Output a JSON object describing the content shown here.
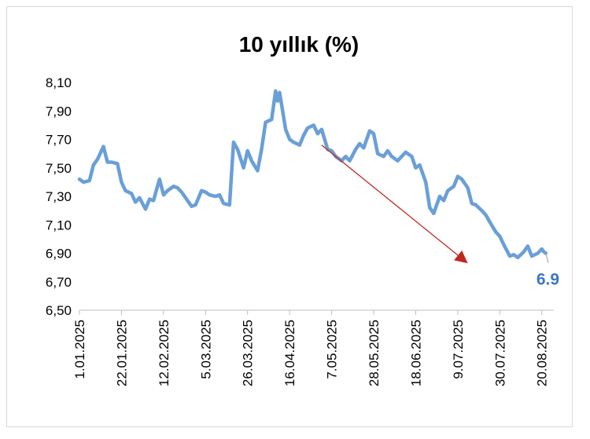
{
  "chart_data": {
    "type": "line",
    "title": "10 yıllık (%)",
    "xlabel": "",
    "ylabel": "",
    "ylim": [
      6.5,
      8.1
    ],
    "yticks": [
      6.5,
      6.7,
      6.9,
      7.1,
      7.3,
      7.5,
      7.7,
      7.9,
      8.1
    ],
    "ytick_labels": [
      "6,50",
      "6,70",
      "6,90",
      "7,10",
      "7,30",
      "7,50",
      "7,70",
      "7,90",
      "8,10"
    ],
    "xtick_labels": [
      "1.01.2025",
      "22.01.2025",
      "12.02.2025",
      "5.03.2025",
      "26.03.2025",
      "16.04.2025",
      "7.05.2025",
      "28.05.2025",
      "18.06.2025",
      "9.07.2025",
      "30.07.2025",
      "20.08.2025"
    ],
    "grid": false,
    "legend": "none",
    "series": [
      {
        "color": "#6a9fd8",
        "x": [
          "2025-01-01",
          "2025-01-03",
          "2025-01-06",
          "2025-01-08",
          "2025-01-10",
          "2025-01-13",
          "2025-01-15",
          "2025-01-17",
          "2025-01-20",
          "2025-01-22",
          "2025-01-24",
          "2025-01-27",
          "2025-01-29",
          "2025-01-31",
          "2025-02-03",
          "2025-02-05",
          "2025-02-07",
          "2025-02-10",
          "2025-02-12",
          "2025-02-14",
          "2025-02-17",
          "2025-02-19",
          "2025-02-21",
          "2025-02-24",
          "2025-02-26",
          "2025-02-28",
          "2025-03-03",
          "2025-03-05",
          "2025-03-07",
          "2025-03-10",
          "2025-03-12",
          "2025-03-14",
          "2025-03-17",
          "2025-03-19",
          "2025-03-21",
          "2025-03-24",
          "2025-03-26",
          "2025-03-28",
          "2025-03-31",
          "2025-04-02",
          "2025-04-04",
          "2025-04-07",
          "2025-04-09",
          "2025-04-10",
          "2025-04-11",
          "2025-04-14",
          "2025-04-16",
          "2025-04-18",
          "2025-04-21",
          "2025-04-23",
          "2025-04-25",
          "2025-04-28",
          "2025-04-30",
          "2025-05-02",
          "2025-05-05",
          "2025-05-07",
          "2025-05-09",
          "2025-05-12",
          "2025-05-14",
          "2025-05-16",
          "2025-05-19",
          "2025-05-21",
          "2025-05-23",
          "2025-05-26",
          "2025-05-28",
          "2025-05-30",
          "2025-06-02",
          "2025-06-04",
          "2025-06-06",
          "2025-06-09",
          "2025-06-11",
          "2025-06-13",
          "2025-06-16",
          "2025-06-18",
          "2025-06-20",
          "2025-06-23",
          "2025-06-25",
          "2025-06-27",
          "2025-06-30",
          "2025-07-02",
          "2025-07-04",
          "2025-07-07",
          "2025-07-09",
          "2025-07-11",
          "2025-07-14",
          "2025-07-16",
          "2025-07-18",
          "2025-07-21",
          "2025-07-23",
          "2025-07-25",
          "2025-07-28",
          "2025-07-30",
          "2025-08-01",
          "2025-08-04",
          "2025-08-06",
          "2025-08-08",
          "2025-08-11",
          "2025-08-13",
          "2025-08-15",
          "2025-08-18",
          "2025-08-20",
          "2025-08-21",
          "2025-08-22"
        ],
        "y": [
          7.42,
          7.4,
          7.41,
          7.52,
          7.56,
          7.65,
          7.54,
          7.54,
          7.53,
          7.4,
          7.34,
          7.32,
          7.26,
          7.29,
          7.21,
          7.28,
          7.27,
          7.42,
          7.31,
          7.34,
          7.37,
          7.36,
          7.33,
          7.27,
          7.23,
          7.24,
          7.34,
          7.33,
          7.31,
          7.3,
          7.31,
          7.25,
          7.24,
          7.68,
          7.63,
          7.5,
          7.62,
          7.55,
          7.48,
          7.63,
          7.82,
          7.84,
          8.04,
          7.97,
          8.03,
          7.77,
          7.7,
          7.68,
          7.66,
          7.73,
          7.78,
          7.8,
          7.74,
          7.77,
          7.63,
          7.62,
          7.58,
          7.55,
          7.58,
          7.55,
          7.63,
          7.67,
          7.64,
          7.76,
          7.74,
          7.6,
          7.58,
          7.62,
          7.58,
          7.55,
          7.58,
          7.61,
          7.58,
          7.5,
          7.52,
          7.4,
          7.22,
          7.18,
          7.3,
          7.27,
          7.34,
          7.37,
          7.44,
          7.42,
          7.36,
          7.25,
          7.24,
          7.2,
          7.17,
          7.12,
          7.05,
          7.02,
          6.96,
          6.88,
          6.89,
          6.87,
          6.91,
          6.95,
          6.88,
          6.9,
          6.93,
          6.91,
          6.9
        ]
      }
    ],
    "end_label": "6.9",
    "end_label_color": "#3b78c4",
    "trend_arrow": {
      "color": "#c0281f",
      "from": {
        "x": "2025-05-02",
        "y": 7.66
      },
      "to": {
        "x": "2025-07-14",
        "y": 6.83
      }
    }
  }
}
